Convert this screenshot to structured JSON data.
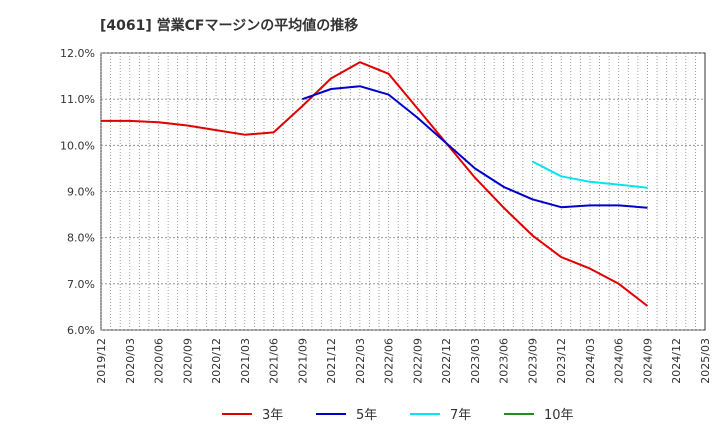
{
  "chart_data": {
    "type": "line",
    "title": "[4061]  営業CFマージンの平均値の推移",
    "x_ticks": [
      "2019/12",
      "2020/03",
      "2020/06",
      "2020/09",
      "2020/12",
      "2021/03",
      "2021/06",
      "2021/09",
      "2021/12",
      "2022/03",
      "2022/06",
      "2022/09",
      "2022/12",
      "2023/03",
      "2023/06",
      "2023/09",
      "2023/12",
      "2024/03",
      "2024/06",
      "2024/09",
      "2024/12",
      "2025/03"
    ],
    "y_ticks": [
      "6.0%",
      "7.0%",
      "8.0%",
      "9.0%",
      "10.0%",
      "11.0%",
      "12.0%"
    ],
    "ylim": [
      6.0,
      12.0
    ],
    "grid": true,
    "legend_position": "bottom",
    "series": [
      {
        "name": "3年",
        "color": "#e00000",
        "points": [
          [
            "2019/12",
            10.53
          ],
          [
            "2020/03",
            10.53
          ],
          [
            "2020/06",
            10.5
          ],
          [
            "2020/09",
            10.43
          ],
          [
            "2020/12",
            10.33
          ],
          [
            "2021/03",
            10.23
          ],
          [
            "2021/06",
            10.28
          ],
          [
            "2021/09",
            10.85
          ],
          [
            "2021/12",
            11.45
          ],
          [
            "2022/03",
            11.8
          ],
          [
            "2022/06",
            11.55
          ],
          [
            "2022/09",
            10.8
          ],
          [
            "2022/12",
            10.05
          ],
          [
            "2023/03",
            9.3
          ],
          [
            "2023/06",
            8.65
          ],
          [
            "2023/09",
            8.05
          ],
          [
            "2023/12",
            7.58
          ],
          [
            "2024/03",
            7.33
          ],
          [
            "2024/06",
            7.0
          ],
          [
            "2024/09",
            6.52
          ]
        ]
      },
      {
        "name": "5年",
        "color": "#0000cc",
        "points": [
          [
            "2021/09",
            11.0
          ],
          [
            "2021/12",
            11.22
          ],
          [
            "2022/03",
            11.28
          ],
          [
            "2022/06",
            11.1
          ],
          [
            "2022/09",
            10.6
          ],
          [
            "2022/12",
            10.05
          ],
          [
            "2023/03",
            9.5
          ],
          [
            "2023/06",
            9.1
          ],
          [
            "2023/09",
            8.83
          ],
          [
            "2023/12",
            8.66
          ],
          [
            "2024/03",
            8.7
          ],
          [
            "2024/06",
            8.7
          ],
          [
            "2024/09",
            8.65
          ]
        ]
      },
      {
        "name": "7年",
        "color": "#00e5ee",
        "points": [
          [
            "2023/09",
            9.65
          ],
          [
            "2023/12",
            9.33
          ],
          [
            "2024/03",
            9.21
          ],
          [
            "2024/06",
            9.15
          ],
          [
            "2024/09",
            9.08
          ]
        ]
      },
      {
        "name": "10年",
        "color": "#228b22",
        "points": []
      }
    ]
  }
}
